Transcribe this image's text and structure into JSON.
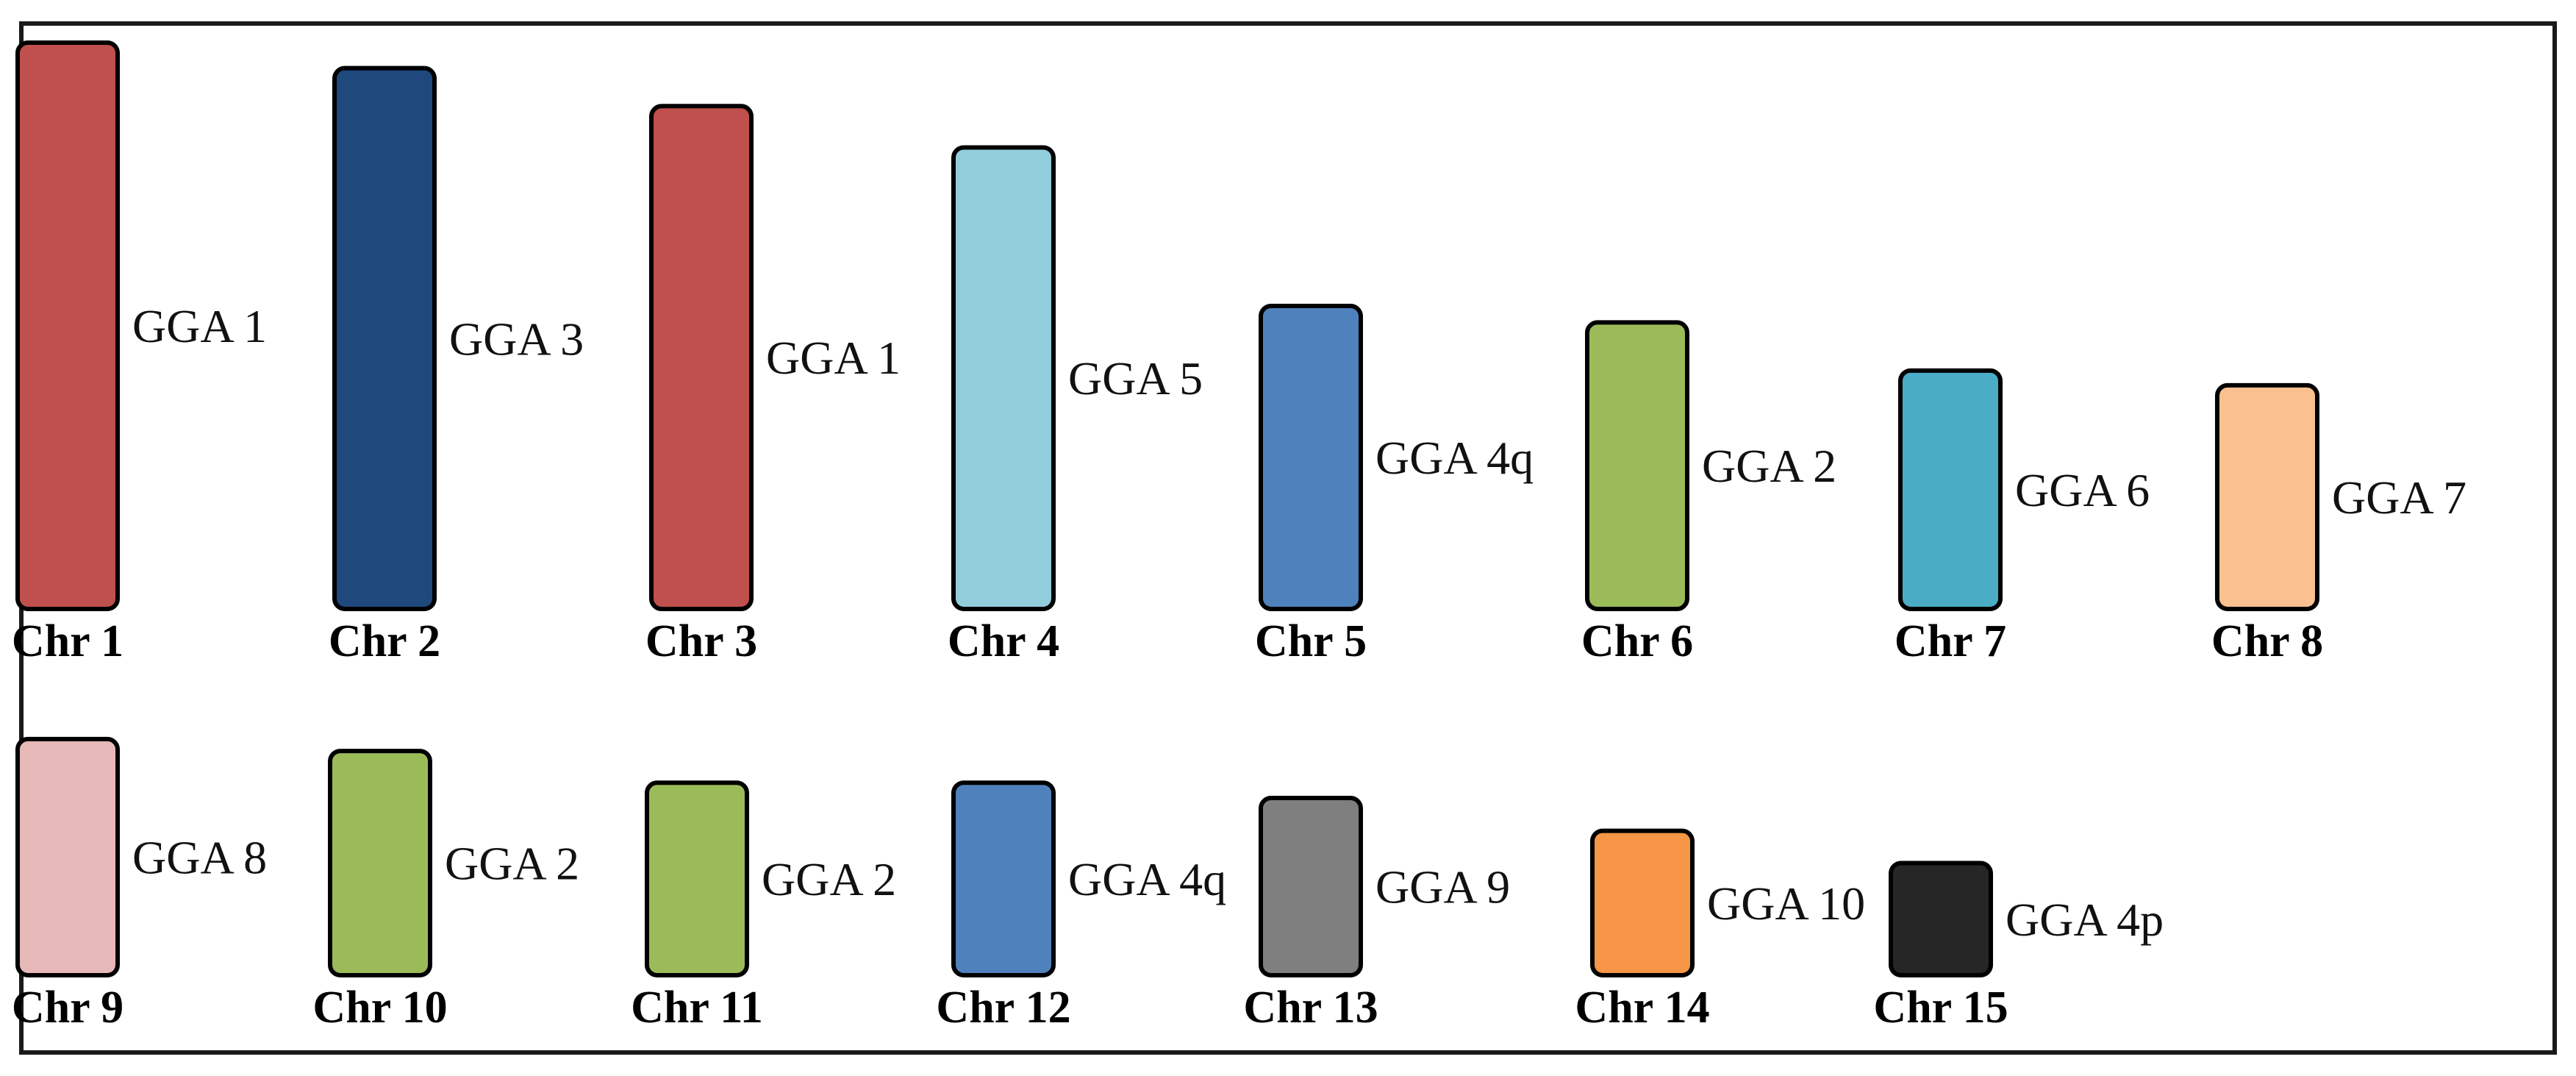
{
  "chromosomes": [
    {
      "label": "Chr 1",
      "homolog": "GGA 1",
      "color": "#C0504D",
      "relative_length": 1.0
    },
    {
      "label": "Chr 2",
      "homolog": "GGA 3",
      "color": "#1F497D",
      "relative_length": 0.955
    },
    {
      "label": "Chr 3",
      "homolog": "GGA 1",
      "color": "#C0504D",
      "relative_length": 0.888
    },
    {
      "label": "Chr 4",
      "homolog": "GGA 5",
      "color": "#92CDDC",
      "relative_length": 0.815
    },
    {
      "label": "Chr 5",
      "homolog": "GGA 4q",
      "color": "#4F81BD",
      "relative_length": 0.535
    },
    {
      "label": "Chr 6",
      "homolog": "GGA 2",
      "color": "#9BBB59",
      "relative_length": 0.506
    },
    {
      "label": "Chr 7",
      "homolog": "GGA 6",
      "color": "#4BACC6",
      "relative_length": 0.421
    },
    {
      "label": "Chr 8",
      "homolog": "GGA 7",
      "color": "#FAC090",
      "relative_length": 0.395
    },
    {
      "label": "Chr 9",
      "homolog": "GGA 8",
      "color": "#E6B9B8",
      "relative_length": 0.417
    },
    {
      "label": "Chr 10",
      "homolog": "GGA 2",
      "color": "#9BBB59",
      "relative_length": 0.396
    },
    {
      "label": "Chr 11",
      "homolog": "GGA 2",
      "color": "#9BBB59",
      "relative_length": 0.34
    },
    {
      "label": "Chr 12",
      "homolog": "GGA 4q",
      "color": "#4F81BD",
      "relative_length": 0.34
    },
    {
      "label": "Chr 13",
      "homolog": "GGA 9",
      "color": "#7F7F7F",
      "relative_length": 0.313
    },
    {
      "label": "Chr 14",
      "homolog": "GGA 10",
      "color": "#F79646",
      "relative_length": 0.255
    },
    {
      "label": "Chr 15",
      "homolog": "GGA 4p",
      "color": "#262626",
      "relative_length": 0.198
    }
  ]
}
